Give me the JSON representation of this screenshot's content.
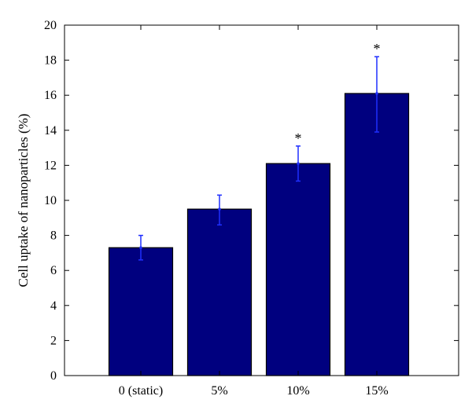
{
  "chart_data": {
    "type": "bar",
    "categories": [
      "0 (static)",
      "5%",
      "10%",
      "15%"
    ],
    "values": [
      7.3,
      9.5,
      12.1,
      16.1
    ],
    "error_bars": [
      {
        "low": 6.6,
        "high": 8.0
      },
      {
        "low": 8.6,
        "high": 10.3
      },
      {
        "low": 11.1,
        "high": 13.1
      },
      {
        "low": 13.9,
        "high": 18.2
      }
    ],
    "significance_markers": [
      "",
      "",
      "*",
      "*"
    ],
    "ylabel": "Cell uptake of nanoparticles (%)",
    "xlabel": "",
    "ylim": [
      0,
      20
    ],
    "yticks": [
      0,
      2,
      4,
      6,
      8,
      10,
      12,
      14,
      16,
      18,
      20
    ],
    "grid": false,
    "colors": {
      "bar_fill": "#00007f",
      "bar_stroke": "#000000",
      "error_bar": "#1f2fff",
      "axis": "#000000"
    }
  }
}
